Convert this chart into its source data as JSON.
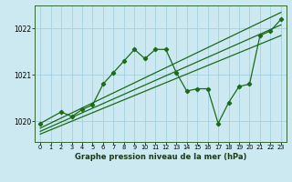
{
  "title": "Graphe pression niveau de la mer (hPa)",
  "bg_color": "#cce8f0",
  "grid_color": "#99cce0",
  "line_color": "#1a6b1a",
  "ylim": [
    1019.55,
    1022.5
  ],
  "yticks": [
    1020,
    1021,
    1022
  ],
  "xlim": [
    -0.5,
    23.5
  ],
  "xticks": [
    0,
    1,
    2,
    3,
    4,
    5,
    6,
    7,
    8,
    9,
    10,
    11,
    12,
    13,
    14,
    15,
    16,
    17,
    18,
    19,
    20,
    21,
    22,
    23
  ],
  "jagged_x": [
    0,
    2,
    3,
    4,
    5,
    6,
    7,
    8,
    9,
    10,
    11,
    12,
    13,
    14,
    15,
    16,
    17,
    18,
    19,
    20,
    21,
    22,
    23
  ],
  "jagged_y": [
    1019.95,
    1020.2,
    1020.1,
    1020.25,
    1020.35,
    1020.8,
    1021.05,
    1021.3,
    1021.55,
    1021.35,
    1021.55,
    1021.55,
    1021.05,
    1020.65,
    1020.7,
    1020.7,
    1019.95,
    1020.4,
    1020.75,
    1020.8,
    1021.85,
    1021.95,
    1022.2
  ],
  "trend1_x": [
    0,
    23
  ],
  "trend1_y": [
    1019.85,
    1022.35
  ],
  "trend2_x": [
    0,
    23
  ],
  "trend2_y": [
    1019.78,
    1022.08
  ],
  "trend3_x": [
    0,
    23
  ],
  "trend3_y": [
    1019.72,
    1021.85
  ]
}
